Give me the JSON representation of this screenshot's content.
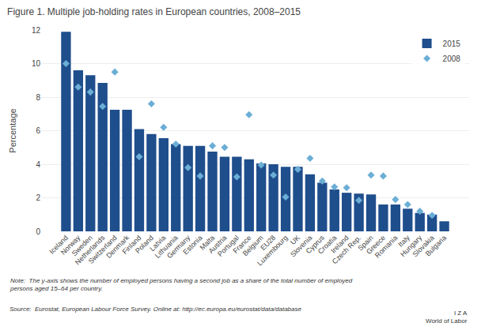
{
  "chart_data": {
    "type": "bar",
    "title": "Figure 1. Multiple job-holding rates in European countries, 2008–2015",
    "ylabel": "Percentage",
    "categories": [
      "Iceland",
      "Norway",
      "Sweden",
      "Netherlands",
      "Switzerland",
      "Denmark",
      "Finland",
      "Poland",
      "Latvia",
      "Lithuania",
      "Germany",
      "Estonia",
      "Malta",
      "Austria",
      "Portugal",
      "France",
      "Belgium",
      "EU28",
      "Luxembourg",
      "UK",
      "Slovenia",
      "Cyprus",
      "Croatia",
      "Ireland",
      "Czech Rep.",
      "Spain",
      "Greece",
      "Romania",
      "Italy",
      "Hungary",
      "Slovakia",
      "Bulgaria"
    ],
    "series": [
      {
        "name": "2015",
        "type": "bar",
        "color": "#1F4E8C",
        "values": [
          11.9,
          9.6,
          9.3,
          8.85,
          7.25,
          7.25,
          6.1,
          5.8,
          5.55,
          5.2,
          5.1,
          5.1,
          4.75,
          4.45,
          4.45,
          4.3,
          4.05,
          4.0,
          3.85,
          3.85,
          3.4,
          2.9,
          2.5,
          2.3,
          2.25,
          2.2,
          1.6,
          1.6,
          1.35,
          1.1,
          1.0,
          0.6
        ]
      },
      {
        "name": "2008",
        "type": "scatter",
        "marker": "diamond",
        "color": "#6BAED6",
        "values": [
          10.0,
          8.6,
          8.3,
          7.45,
          9.5,
          null,
          4.45,
          7.6,
          6.2,
          5.2,
          3.8,
          3.3,
          5.1,
          5.0,
          3.25,
          6.95,
          3.95,
          3.35,
          2.05,
          3.7,
          4.35,
          3.0,
          2.65,
          2.6,
          1.85,
          3.35,
          3.3,
          1.9,
          1.6,
          1.2,
          0.95,
          null
        ]
      }
    ],
    "ylim": [
      0,
      12
    ],
    "yticks": [
      0,
      2,
      4,
      6,
      8,
      10,
      12
    ],
    "grid": true,
    "legend": "upper right",
    "annotations": [
      "Note:  The y-axis shows the number of employed persons having a second job as a share of the total number of employed\npersons aged 15–64 per country.",
      "Source:  Eurostat, European Labour Force Survey. Online at: http://ec.europa.eu/eurostat/data/database",
      "I Z A\nWorld of Labor"
    ]
  }
}
